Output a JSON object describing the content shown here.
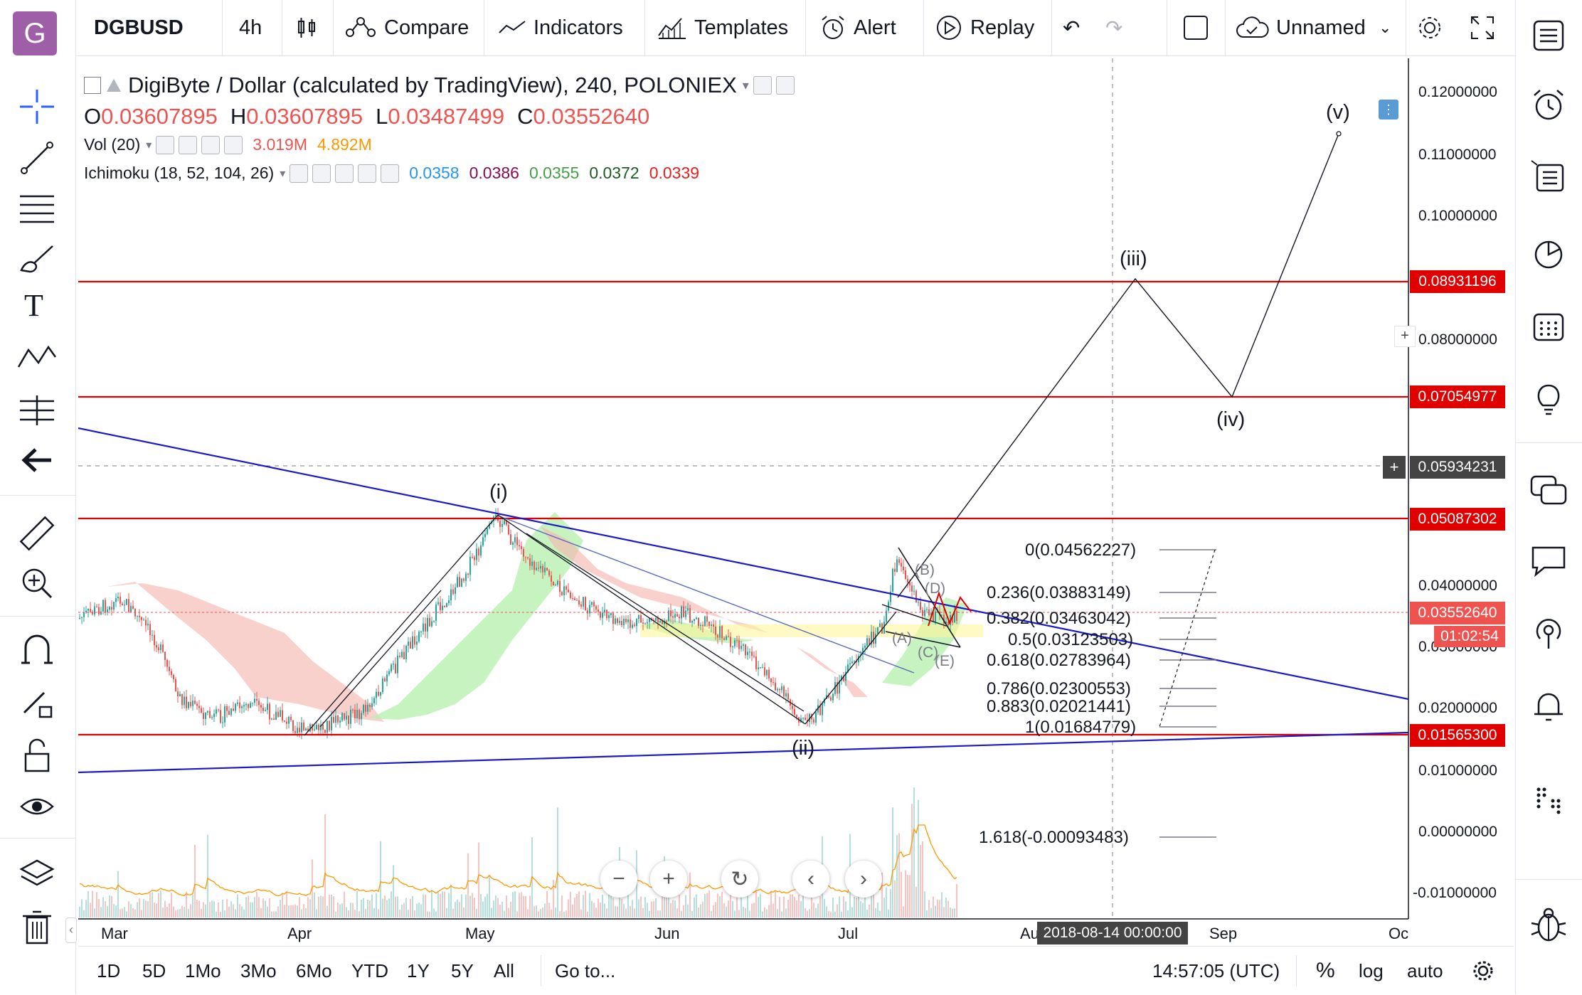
{
  "toolbar": {
    "symbol": "DGBUSD",
    "interval": "4h",
    "compare": "Compare",
    "indicators": "Indicators",
    "templates": "Templates",
    "alert": "Alert",
    "replay": "Replay",
    "layout_name": "Unnamed",
    "logo": "G"
  },
  "legend": {
    "title": "DigiByte / Dollar (calculated by TradingView), 240, POLONIEX",
    "o_label": "O",
    "o_value": "0.03607895",
    "h_label": "H",
    "h_value": "0.03607895",
    "l_label": "L",
    "l_value": "0.03487499",
    "c_label": "C",
    "c_value": "0.03552640",
    "vol_name": "Vol (20)",
    "vol_value1": "3.019M",
    "vol_value2": "4.892M",
    "ichi_name": "Ichimoku (18, 52, 104, 26)",
    "ichi_values": [
      "0.0358",
      "0.0386",
      "0.0355",
      "0.0372",
      "0.0339"
    ],
    "ichi_colors": [
      "#2196f3",
      "#880e4f",
      "#43a047",
      "#1b5e20",
      "#e91e1e"
    ]
  },
  "price_axis": {
    "ticks": [
      "0.12000000",
      "0.11000000",
      "0.10000000",
      "0.08000000",
      "0.04000000",
      "0.03000000",
      "0.02000000",
      "0.01000000",
      "0.00000000",
      "-0.01000000"
    ],
    "badges": {
      "level1": "0.08931196",
      "level2": "0.07054977",
      "crosshair": "0.05934231",
      "level3": "0.05087302",
      "last": "0.03552640",
      "countdown": "01:02:54",
      "level4": "0.01565300"
    }
  },
  "time_axis": {
    "labels": [
      "Mar",
      "Apr",
      "May",
      "Jun",
      "Jul",
      "Au",
      "Sep",
      "Oc"
    ],
    "crosshair_time": "2018-08-14 00:00:00"
  },
  "waves": {
    "w1": "(i)",
    "w2": "(ii)",
    "w3": "(iii)",
    "w4": "(iv)",
    "w5": "(v)",
    "a": "(A)",
    "b": "(B)",
    "c": "(C)",
    "d": "(D)",
    "e": "(E)"
  },
  "fib_levels": [
    "0(0.04562227)",
    "0.236(0.03883149)",
    "0.382(0.03463042)",
    "0.5(0.03123503)",
    "0.618(0.02783964)",
    "0.786(0.02300553)",
    "0.883(0.02021441)",
    "1(0.01684779)",
    "1.618(-0.00093483)"
  ],
  "bottombar": {
    "ranges": [
      "1D",
      "5D",
      "1Mo",
      "3Mo",
      "6Mo",
      "YTD",
      "1Y",
      "5Y",
      "All"
    ],
    "goto": "Go to...",
    "clock": "14:57:05 (UTC)",
    "percent": "%",
    "log": "log",
    "auto": "auto"
  },
  "colors": {
    "up": "#26a69a",
    "down": "#ef5350",
    "level_line": "#e00000",
    "trend_line": "#1a1acb",
    "badge_red": "#e00000",
    "badge_dark": "#444444"
  }
}
